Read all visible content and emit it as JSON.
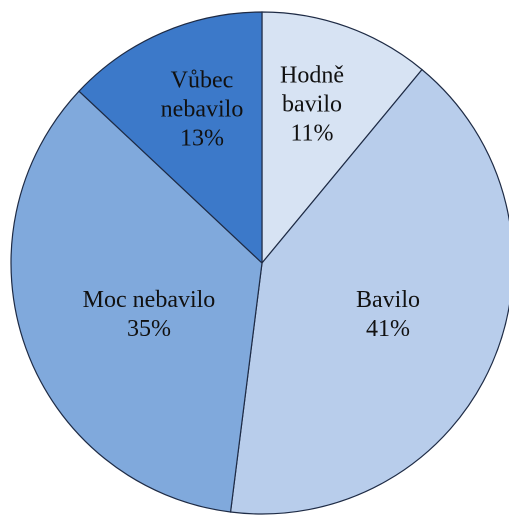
{
  "chart_data": {
    "type": "pie",
    "categories": [
      "Hodně bavilo",
      "Bavilo",
      "Moc nebavilo",
      "Vůbec nebavilo"
    ],
    "values": [
      11,
      41,
      35,
      13
    ],
    "value_labels": [
      "11%",
      "41%",
      "35%",
      "13%"
    ],
    "colors": [
      "#d7e3f3",
      "#b8cdeb",
      "#80a9dc",
      "#3c79c9"
    ]
  }
}
